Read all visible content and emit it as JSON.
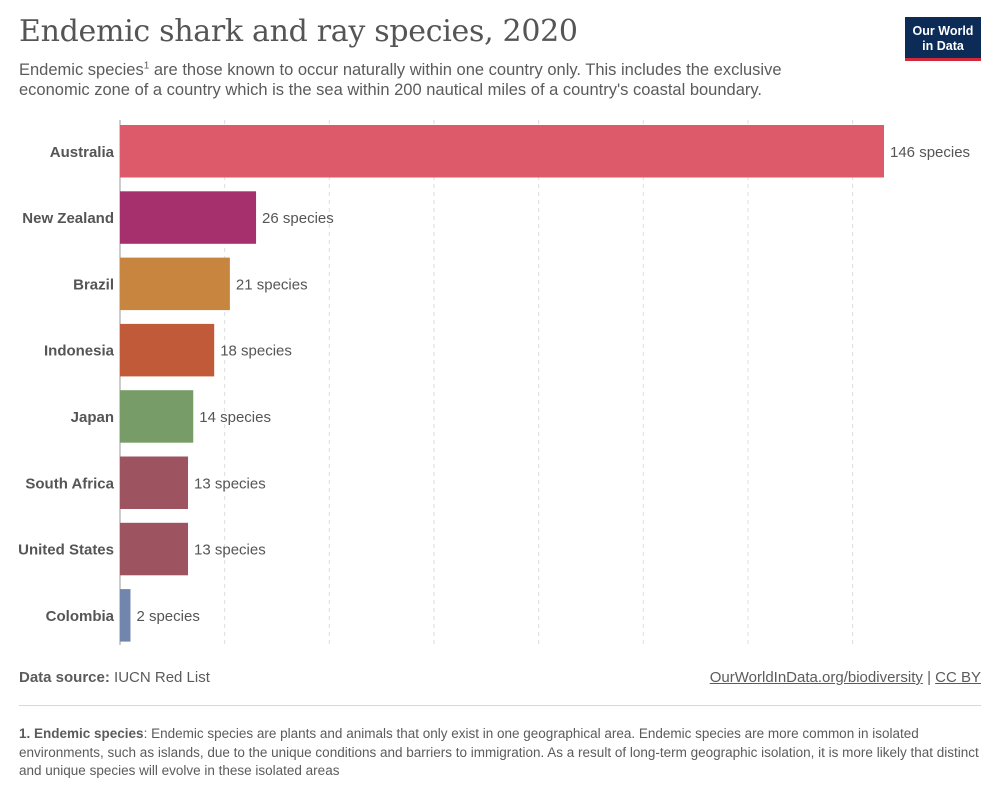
{
  "header": {
    "title": "Endemic shark and ray species, 2020",
    "subtitle_pre": "Endemic species",
    "subtitle_sup": "1",
    "subtitle_post": " are those known to occur naturally within one country only. This includes the exclusive economic zone of a country which is the sea within 200 nautical miles of a country's coastal boundary.",
    "logo_line1": "Our World",
    "logo_line2": "in Data"
  },
  "footer": {
    "source_label": "Data source:",
    "source_value": " IUCN Red List",
    "link_text": "OurWorldInData.org/biodiversity",
    "separator": " | ",
    "license": "CC BY"
  },
  "note": {
    "number": "1. Endemic species",
    "text": ": Endemic species are plants and animals that only exist in one geographical area. Endemic species are more common in isolated environments, such as islands, due to the unique conditions and barriers to immigration. As a result of long-term geographic isolation, it is more likely that distinct and unique species will evolve in these isolated areas"
  },
  "chart_data": {
    "type": "bar",
    "orientation": "horizontal",
    "categories": [
      "Australia",
      "New Zealand",
      "Brazil",
      "Indonesia",
      "Japan",
      "South Africa",
      "United States",
      "Colombia"
    ],
    "values": [
      146,
      26,
      21,
      18,
      14,
      13,
      13,
      2
    ],
    "value_labels": [
      "146 species",
      "26 species",
      "21 species",
      "18 species",
      "14 species",
      "13 species",
      "13 species",
      "2 species"
    ],
    "colors": [
      "#dd5a6a",
      "#a6306e",
      "#c88540",
      "#c05a39",
      "#789c68",
      "#9e5460",
      "#9e5460",
      "#7186ac"
    ],
    "xlim": [
      0,
      146
    ],
    "grid": true,
    "gridline_values": [
      20,
      40,
      60,
      80,
      100,
      120,
      140
    ]
  }
}
